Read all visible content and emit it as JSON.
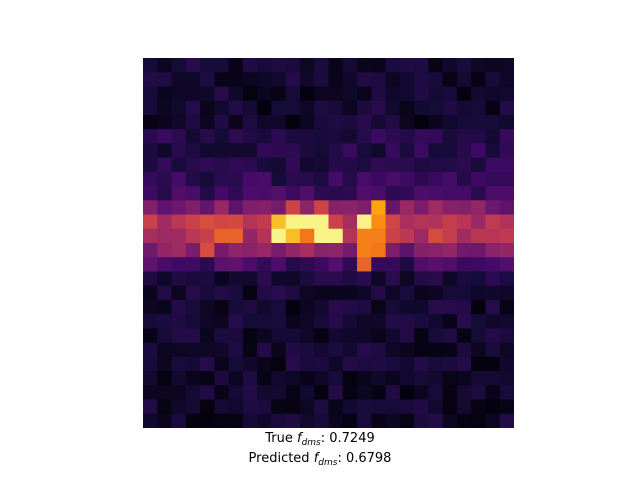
{
  "chart_data": {
    "type": "heatmap",
    "colormap": "inferno",
    "rows": 26,
    "cols": 26,
    "value_range": [
      0,
      1
    ],
    "grid": false,
    "axes": "off",
    "hotspots": [
      {
        "row": 12,
        "col": 10,
        "value": 0.85
      },
      {
        "row": 12,
        "col": 11,
        "value": 0.7
      },
      {
        "row": 11,
        "col": 9,
        "value": 0.85
      },
      {
        "row": 12,
        "col": 9,
        "value": 0.97
      },
      {
        "row": 11,
        "col": 10,
        "value": 0.97
      },
      {
        "row": 11,
        "col": 11,
        "value": 0.97
      },
      {
        "row": 11,
        "col": 12,
        "value": 0.97
      },
      {
        "row": 12,
        "col": 12,
        "value": 0.97
      },
      {
        "row": 12,
        "col": 13,
        "value": 0.97
      },
      {
        "row": 11,
        "col": 15,
        "value": 0.97
      },
      {
        "row": 10,
        "col": 16,
        "value": 0.8
      },
      {
        "row": 11,
        "col": 16,
        "value": 0.75
      },
      {
        "row": 12,
        "col": 15,
        "value": 0.72
      },
      {
        "row": 12,
        "col": 16,
        "value": 0.72
      },
      {
        "row": 13,
        "col": 15,
        "value": 0.72
      },
      {
        "row": 13,
        "col": 16,
        "value": 0.7
      },
      {
        "row": 14,
        "col": 15,
        "value": 0.65
      },
      {
        "row": 12,
        "col": 5,
        "value": 0.65
      },
      {
        "row": 12,
        "col": 6,
        "value": 0.65
      },
      {
        "row": 13,
        "col": 4,
        "value": 0.58
      },
      {
        "row": 10,
        "col": 10,
        "value": 0.55
      },
      {
        "row": 10,
        "col": 12,
        "value": 0.55
      }
    ]
  },
  "captions": {
    "true_label": "True ",
    "true_value": ": 0.7249",
    "predicted_label": "Predicted ",
    "predicted_value": ": 0.6798",
    "symbol": "f",
    "symbol_subscript": "dms"
  }
}
